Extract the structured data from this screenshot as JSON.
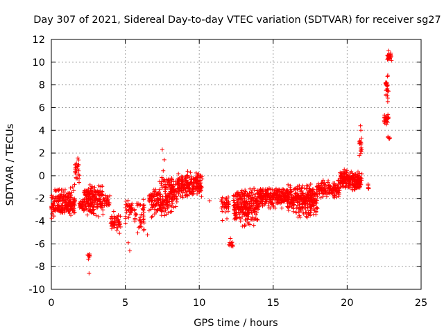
{
  "chart_data": {
    "type": "scatter",
    "title": "Day 307 of 2021, Sidereal Day-to-day VTEC variation (SDTVAR) for receiver sg27",
    "xlabel": "GPS time / hours",
    "ylabel": "SDTVAR / TECUs",
    "xlim": [
      0,
      25
    ],
    "ylim": [
      -10,
      12
    ],
    "x_ticks": [
      0,
      5,
      10,
      15,
      20,
      25
    ],
    "y_ticks": [
      -10,
      -8,
      -6,
      -4,
      -2,
      0,
      2,
      4,
      6,
      8,
      10,
      12
    ],
    "grid": true,
    "marker": "+",
    "series": [
      {
        "name": "SDTVAR",
        "color": "#ff0000",
        "segments": [
          {
            "x_start": 0.0,
            "x_end": 1.6,
            "y_min": -3.8,
            "y_max": -0.3,
            "center": -2.5,
            "count": 220
          },
          {
            "x_start": 1.6,
            "x_end": 1.9,
            "y_min": -1.0,
            "y_max": 1.9,
            "center": 0.6,
            "count": 25
          },
          {
            "x_start": 1.9,
            "x_end": 2.2,
            "y_min": -3.3,
            "y_max": -1.8,
            "center": -2.6,
            "count": 30
          },
          {
            "x_start": 2.2,
            "x_end": 3.5,
            "y_min": -4.0,
            "y_max": -0.3,
            "center": -2.0,
            "count": 180
          },
          {
            "x_start": 2.45,
            "x_end": 2.6,
            "y_min": -7.5,
            "y_max": -6.6,
            "center": -7.0,
            "count": 8
          },
          {
            "x_start": 3.5,
            "x_end": 4.0,
            "y_min": -3.0,
            "y_max": -1.5,
            "center": -2.2,
            "count": 25
          },
          {
            "x_start": 4.0,
            "x_end": 4.7,
            "y_min": -5.2,
            "y_max": -2.8,
            "center": -4.0,
            "count": 50
          },
          {
            "x_start": 5.0,
            "x_end": 5.5,
            "y_min": -5.0,
            "y_max": -1.8,
            "center": -3.0,
            "count": 35
          },
          {
            "x_start": 5.6,
            "x_end": 6.3,
            "y_min": -5.8,
            "y_max": -1.2,
            "center": -3.5,
            "count": 45
          },
          {
            "x_start": 6.6,
            "x_end": 7.3,
            "y_min": -4.0,
            "y_max": -0.8,
            "center": -2.2,
            "count": 70
          },
          {
            "x_start": 7.3,
            "x_end": 7.9,
            "y_min": -4.2,
            "y_max": 1.6,
            "center": -2.0,
            "count": 90
          },
          {
            "x_start": 7.9,
            "x_end": 8.5,
            "y_min": -3.5,
            "y_max": 0.8,
            "center": -1.5,
            "count": 80
          },
          {
            "x_start": 8.5,
            "x_end": 10.2,
            "y_min": -2.5,
            "y_max": 0.7,
            "center": -0.8,
            "count": 200
          },
          {
            "x_start": 11.5,
            "x_end": 12.0,
            "y_min": -4.5,
            "y_max": -1.5,
            "center": -2.5,
            "count": 40
          },
          {
            "x_start": 12.0,
            "x_end": 12.3,
            "y_min": -6.6,
            "y_max": -5.4,
            "center": -6.0,
            "count": 12
          },
          {
            "x_start": 12.3,
            "x_end": 14.0,
            "y_min": -5.0,
            "y_max": -0.5,
            "center": -2.6,
            "count": 260
          },
          {
            "x_start": 14.0,
            "x_end": 16.0,
            "y_min": -3.2,
            "y_max": -0.8,
            "center": -1.8,
            "count": 240
          },
          {
            "x_start": 16.0,
            "x_end": 17.0,
            "y_min": -4.0,
            "y_max": -0.3,
            "center": -2.0,
            "count": 140
          },
          {
            "x_start": 17.0,
            "x_end": 18.0,
            "y_min": -4.0,
            "y_max": -0.3,
            "center": -2.2,
            "count": 160
          },
          {
            "x_start": 18.0,
            "x_end": 19.5,
            "y_min": -2.2,
            "y_max": -0.2,
            "center": -1.2,
            "count": 140
          },
          {
            "x_start": 19.5,
            "x_end": 20.5,
            "y_min": -1.5,
            "y_max": 0.8,
            "center": -0.3,
            "count": 150
          },
          {
            "x_start": 20.5,
            "x_end": 21.0,
            "y_min": -1.5,
            "y_max": 0.5,
            "center": -0.5,
            "count": 80
          },
          {
            "x_start": 20.8,
            "x_end": 21.0,
            "y_min": 1.5,
            "y_max": 4.4,
            "center": 2.5,
            "count": 18
          },
          {
            "x_start": 21.3,
            "x_end": 21.5,
            "y_min": -1.3,
            "y_max": -0.6,
            "center": -1.0,
            "count": 6
          },
          {
            "x_start": 22.5,
            "x_end": 22.8,
            "y_min": 4.3,
            "y_max": 5.8,
            "center": 5.0,
            "count": 25
          },
          {
            "x_start": 22.6,
            "x_end": 22.8,
            "y_min": 6.0,
            "y_max": 9.5,
            "center": 8.0,
            "count": 25
          },
          {
            "x_start": 22.7,
            "x_end": 23.0,
            "y_min": 10.0,
            "y_max": 11.0,
            "center": 10.5,
            "count": 25
          },
          {
            "x_start": 22.75,
            "x_end": 22.9,
            "y_min": 3.0,
            "y_max": 3.5,
            "center": 3.3,
            "count": 5
          }
        ],
        "outliers": [
          {
            "x": 2.55,
            "y": -8.6
          },
          {
            "x": 5.3,
            "y": -6.6
          },
          {
            "x": 5.2,
            "y": -5.9
          },
          {
            "x": 7.5,
            "y": 2.3
          },
          {
            "x": 10.7,
            "y": -2.2
          },
          {
            "x": 20.9,
            "y": 4.4
          },
          {
            "x": 6.5,
            "y": -5.2
          },
          {
            "x": 3.2,
            "y": -3.6
          },
          {
            "x": 22.8,
            "y": 11.0
          }
        ]
      }
    ]
  }
}
